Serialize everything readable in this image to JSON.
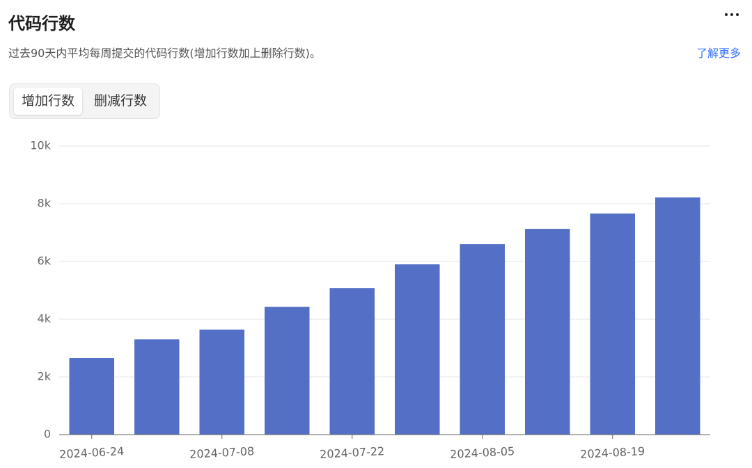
{
  "header": {
    "title": "代码行数",
    "subtitle": "过去90天内平均每周提交的代码行数(增加行数加上删除行数)。",
    "link": "了解更多"
  },
  "tabs": [
    "增加行数",
    "删减行数"
  ],
  "chart_data": {
    "type": "bar",
    "categories": [
      "2024-06-24",
      null,
      "2024-07-08",
      null,
      "2024-07-22",
      null,
      "2024-08-05",
      null,
      "2024-08-19",
      null
    ],
    "values": [
      2650,
      3300,
      3640,
      4430,
      5080,
      5900,
      6600,
      7130,
      7660,
      8220
    ],
    "color": "#5470c6",
    "ylim": [
      0,
      10000
    ],
    "yticks": [
      0,
      {
        "value": 2000,
        "label": "2k"
      },
      {
        "value": 4000,
        "label": "4k"
      },
      {
        "value": 6000,
        "label": "6k"
      },
      {
        "value": 8000,
        "label": "8k"
      },
      {
        "value": 10000,
        "label": "10k"
      }
    ],
    "grid": true
  }
}
